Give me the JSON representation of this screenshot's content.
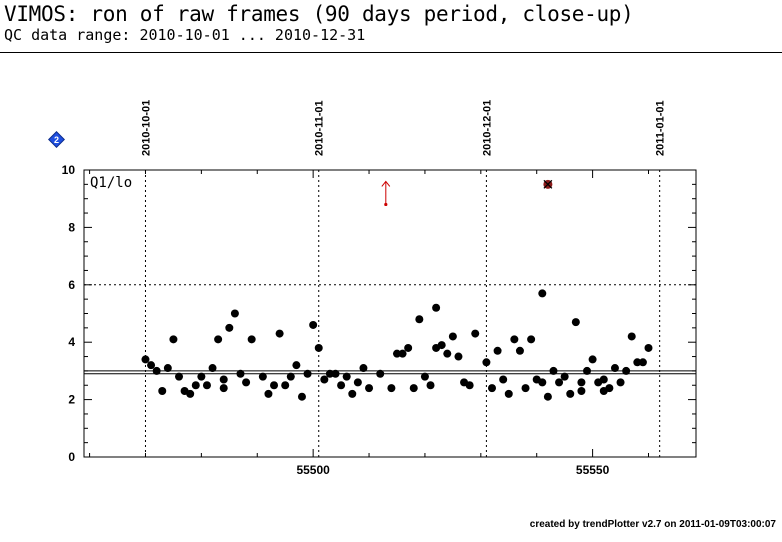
{
  "header": {
    "title": "VIMOS: ron of raw frames (90 days period, close-up)",
    "subtitle": "QC data range: 2010-10-01 ... 2010-12-31"
  },
  "footer": {
    "credit": "created by trendPlotter v2.7 on 2011-01-09T03:00:07"
  },
  "badge": {
    "label": "2",
    "color": "#1f4fe0"
  },
  "chart_data": {
    "type": "scatter",
    "panel_label": "Q1/lo",
    "xlim": [
      55459.0,
      55568.5
    ],
    "ylim": [
      0,
      10
    ],
    "x_ticks": [
      55500,
      55550
    ],
    "y_ticks": [
      0,
      2,
      4,
      6,
      8,
      10
    ],
    "date_markers": [
      {
        "label": "2010-10-01",
        "x": 55470
      },
      {
        "label": "2010-11-01",
        "x": 55501
      },
      {
        "label": "2010-12-01",
        "x": 55531
      },
      {
        "label": "2011-01-01",
        "x": 55562
      }
    ],
    "reference_lines": {
      "mean": 2.9,
      "solid_upper": 3.0,
      "dotted_threshold": 6.0
    },
    "outlier_above_range": {
      "x": 55513,
      "color": "#cc0000"
    },
    "flagged_point": {
      "x": 55542,
      "y": 9.5,
      "color": "#8b1a1a"
    },
    "series": [
      {
        "marker": "filled-circle",
        "color": "#000000",
        "points": [
          [
            55470,
            3.4
          ],
          [
            55471,
            3.2
          ],
          [
            55472,
            3.0
          ],
          [
            55473,
            2.3
          ],
          [
            55474,
            3.1
          ],
          [
            55475,
            4.1
          ],
          [
            55476,
            2.8
          ],
          [
            55477,
            2.3
          ],
          [
            55478,
            2.2
          ],
          [
            55479,
            2.5
          ],
          [
            55480,
            2.8
          ],
          [
            55481,
            2.5
          ],
          [
            55482,
            3.1
          ],
          [
            55483,
            4.1
          ],
          [
            55484,
            2.7
          ],
          [
            55484,
            2.4
          ],
          [
            55485,
            4.5
          ],
          [
            55486,
            5.0
          ],
          [
            55487,
            2.9
          ],
          [
            55488,
            2.6
          ],
          [
            55489,
            4.1
          ],
          [
            55491,
            2.8
          ],
          [
            55492,
            2.2
          ],
          [
            55493,
            2.5
          ],
          [
            55494,
            4.3
          ],
          [
            55495,
            2.5
          ],
          [
            55496,
            2.8
          ],
          [
            55497,
            3.2
          ],
          [
            55498,
            2.1
          ],
          [
            55499,
            2.9
          ],
          [
            55500,
            4.6
          ],
          [
            55501,
            3.8
          ],
          [
            55502,
            2.7
          ],
          [
            55503,
            2.9
          ],
          [
            55504,
            2.9
          ],
          [
            55505,
            2.5
          ],
          [
            55506,
            2.8
          ],
          [
            55507,
            2.2
          ],
          [
            55508,
            2.6
          ],
          [
            55509,
            3.1
          ],
          [
            55510,
            2.4
          ],
          [
            55512,
            2.9
          ],
          [
            55514,
            2.4
          ],
          [
            55515,
            3.6
          ],
          [
            55516,
            3.6
          ],
          [
            55517,
            3.8
          ],
          [
            55518,
            2.4
          ],
          [
            55519,
            4.8
          ],
          [
            55520,
            2.8
          ],
          [
            55521,
            2.5
          ],
          [
            55522,
            3.8
          ],
          [
            55522,
            5.2
          ],
          [
            55523,
            3.9
          ],
          [
            55524,
            3.6
          ],
          [
            55525,
            4.2
          ],
          [
            55526,
            3.5
          ],
          [
            55527,
            2.6
          ],
          [
            55528,
            2.5
          ],
          [
            55529,
            4.3
          ],
          [
            55531,
            3.3
          ],
          [
            55532,
            2.4
          ],
          [
            55533,
            3.7
          ],
          [
            55534,
            2.7
          ],
          [
            55535,
            2.2
          ],
          [
            55536,
            4.1
          ],
          [
            55537,
            3.7
          ],
          [
            55538,
            2.4
          ],
          [
            55539,
            4.1
          ],
          [
            55540,
            2.7
          ],
          [
            55541,
            2.6
          ],
          [
            55541,
            5.7
          ],
          [
            55542,
            2.1
          ],
          [
            55543,
            3.0
          ],
          [
            55544,
            2.6
          ],
          [
            55545,
            2.8
          ],
          [
            55546,
            2.2
          ],
          [
            55547,
            4.7
          ],
          [
            55548,
            2.6
          ],
          [
            55548,
            2.3
          ],
          [
            55549,
            3.0
          ],
          [
            55550,
            3.4
          ],
          [
            55551,
            2.6
          ],
          [
            55552,
            2.3
          ],
          [
            55552,
            2.7
          ],
          [
            55553,
            2.4
          ],
          [
            55554,
            3.1
          ],
          [
            55555,
            2.6
          ],
          [
            55556,
            3.0
          ],
          [
            55557,
            4.2
          ],
          [
            55558,
            3.3
          ],
          [
            55559,
            3.3
          ],
          [
            55560,
            3.8
          ]
        ]
      }
    ]
  }
}
